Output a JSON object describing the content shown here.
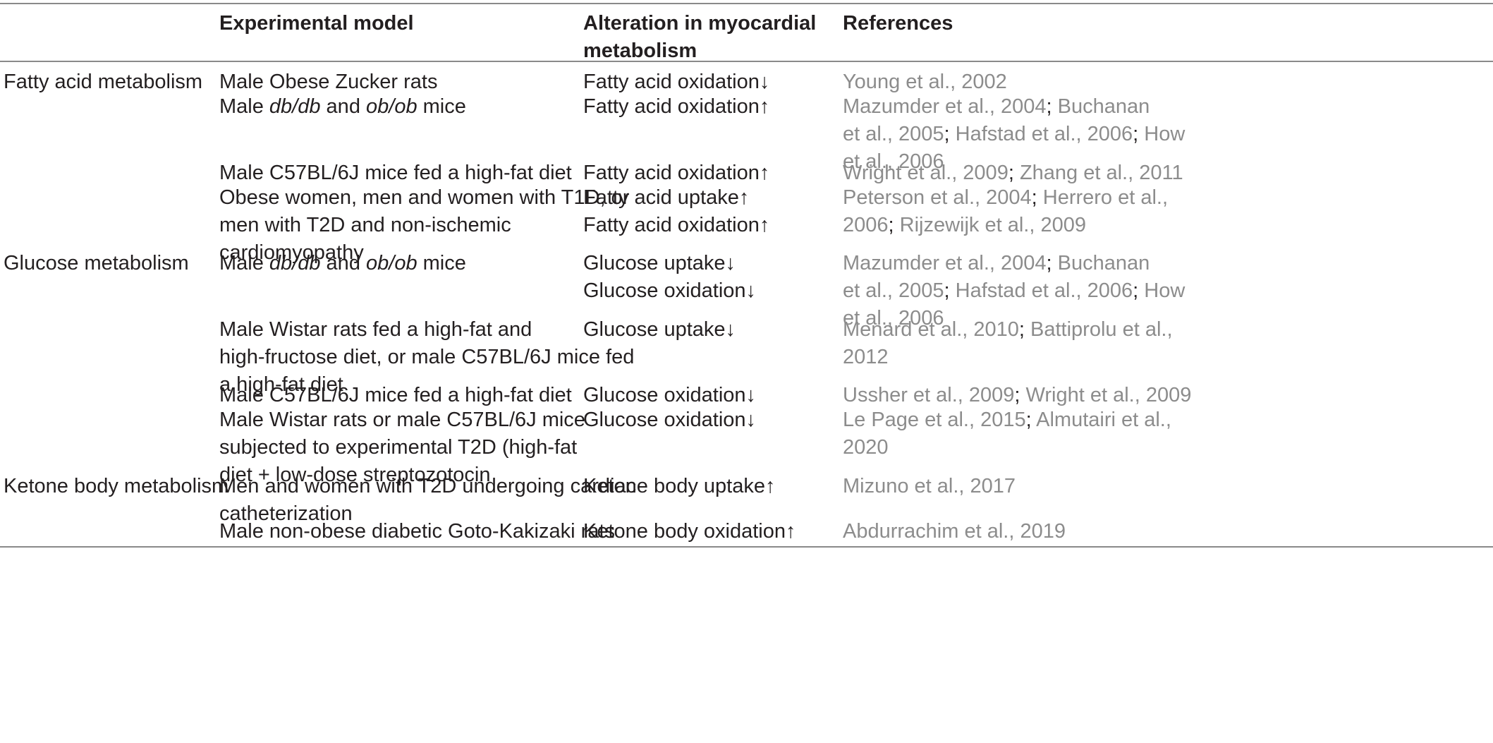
{
  "header": {
    "col_experimental_model": "Experimental model",
    "col_alteration_line1": "Alteration in myocardial",
    "col_alteration_line2": "metabolism",
    "col_references": "References"
  },
  "rows": [
    {
      "category": "Fatty acid metabolism",
      "model_lines": [
        "Male Obese Zucker rats"
      ],
      "alteration_lines": [
        "Fatty acid oxidation↓"
      ],
      "reference_lines": [
        [
          "Young et al., 2002"
        ]
      ]
    },
    {
      "category": "",
      "model_lines": [
        "Male db/db and ob/ob mice"
      ],
      "alteration_lines": [
        "Fatty acid oxidation↑"
      ],
      "reference_lines": [
        [
          "Mazumder et al., 2004",
          "; ",
          "Buchanan"
        ],
        [
          "et al., 2005",
          "; ",
          "Hafstad et al., 2006",
          "; ",
          "How"
        ],
        [
          "et al., 2006"
        ]
      ]
    },
    {
      "category": "",
      "model_lines": [
        "Male C57BL/6J mice fed a high-fat diet"
      ],
      "alteration_lines": [
        "Fatty acid oxidation↑"
      ],
      "reference_lines": [
        [
          "Wright et al., 2009",
          "; ",
          "Zhang et al., 2011"
        ]
      ]
    },
    {
      "category": "",
      "model_lines": [
        "Obese women, men and women with T1D, or",
        "men with T2D and non-ischemic",
        "cardiomyopathy"
      ],
      "alteration_lines": [
        "Fatty acid uptake↑",
        "Fatty acid oxidation↑"
      ],
      "reference_lines": [
        [
          "Peterson et al., 2004",
          "; ",
          "Herrero et al.,"
        ],
        [
          "2006",
          "; ",
          "Rijzewijk et al., 2009"
        ]
      ]
    },
    {
      "category": "Glucose metabolism",
      "model_lines": [
        "Male db/db and ob/ob mice"
      ],
      "alteration_lines": [
        "Glucose uptake↓",
        "Glucose oxidation↓"
      ],
      "reference_lines": [
        [
          "Mazumder et al., 2004",
          "; ",
          "Buchanan"
        ],
        [
          "et al., 2005",
          "; ",
          "Hafstad et al., 2006",
          "; ",
          "How"
        ],
        [
          "et al., 2006"
        ]
      ]
    },
    {
      "category": "",
      "model_lines": [
        "Male Wistar rats fed a high-fat and",
        "high-fructose diet, or male C57BL/6J mice fed",
        "a high-fat diet"
      ],
      "alteration_lines": [
        "Glucose uptake↓"
      ],
      "reference_lines": [
        [
          "Menard et al., 2010",
          "; ",
          "Battiprolu et al.,"
        ],
        [
          "2012"
        ]
      ]
    },
    {
      "category": "",
      "model_lines": [
        "Male C57BL/6J mice fed a high-fat diet"
      ],
      "alteration_lines": [
        "Glucose oxidation↓"
      ],
      "reference_lines": [
        [
          "Ussher et al., 2009",
          "; ",
          "Wright et al., 2009"
        ]
      ]
    },
    {
      "category": "",
      "model_lines": [
        "Male Wistar rats or male C57BL/6J mice",
        "subjected to experimental T2D (high-fat",
        "diet + low-dose streptozotocin"
      ],
      "alteration_lines": [
        "Glucose oxidation↓"
      ],
      "reference_lines": [
        [
          "Le Page et al., 2015",
          "; ",
          "Almutairi et al.,"
        ],
        [
          "2020"
        ]
      ]
    },
    {
      "category": "Ketone body metabolism",
      "model_lines": [
        "Men and women with T2D undergoing cardiac",
        "catheterization"
      ],
      "alteration_lines": [
        "Ketone body uptake↑"
      ],
      "reference_lines": [
        [
          "Mizuno et al., 2017"
        ]
      ]
    },
    {
      "category": "",
      "model_lines": [
        "Male non-obese diabetic Goto-Kakizaki rats"
      ],
      "alteration_lines": [
        "Ketone body oxidation↑"
      ],
      "reference_lines": [
        [
          "Abdurrachim et al., 2019"
        ]
      ]
    }
  ]
}
